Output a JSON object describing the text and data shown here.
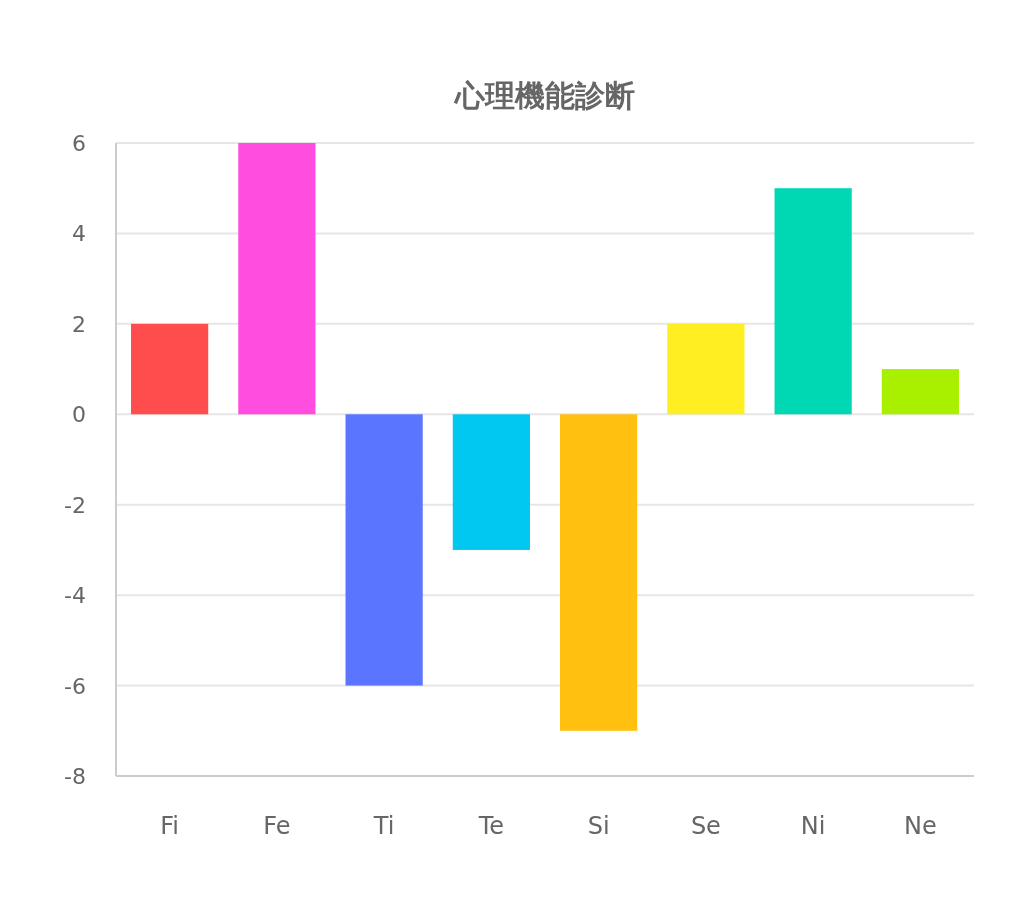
{
  "chart_data": {
    "type": "bar",
    "title": "心理機能診断",
    "categories": [
      "Fi",
      "Fe",
      "Ti",
      "Te",
      "Si",
      "Se",
      "Ni",
      "Ne"
    ],
    "values": [
      2,
      6,
      -6,
      -3,
      -7,
      2,
      5,
      1
    ],
    "colors": [
      "#ff4d4d",
      "#ff4de0",
      "#5a75ff",
      "#00c8f0",
      "#ffc010",
      "#ffee22",
      "#00d8b4",
      "#a8f000"
    ],
    "ylim": [
      -8,
      6
    ],
    "yticks": [
      -8,
      -6,
      -4,
      -2,
      0,
      2,
      4,
      6
    ],
    "grid": "y"
  }
}
